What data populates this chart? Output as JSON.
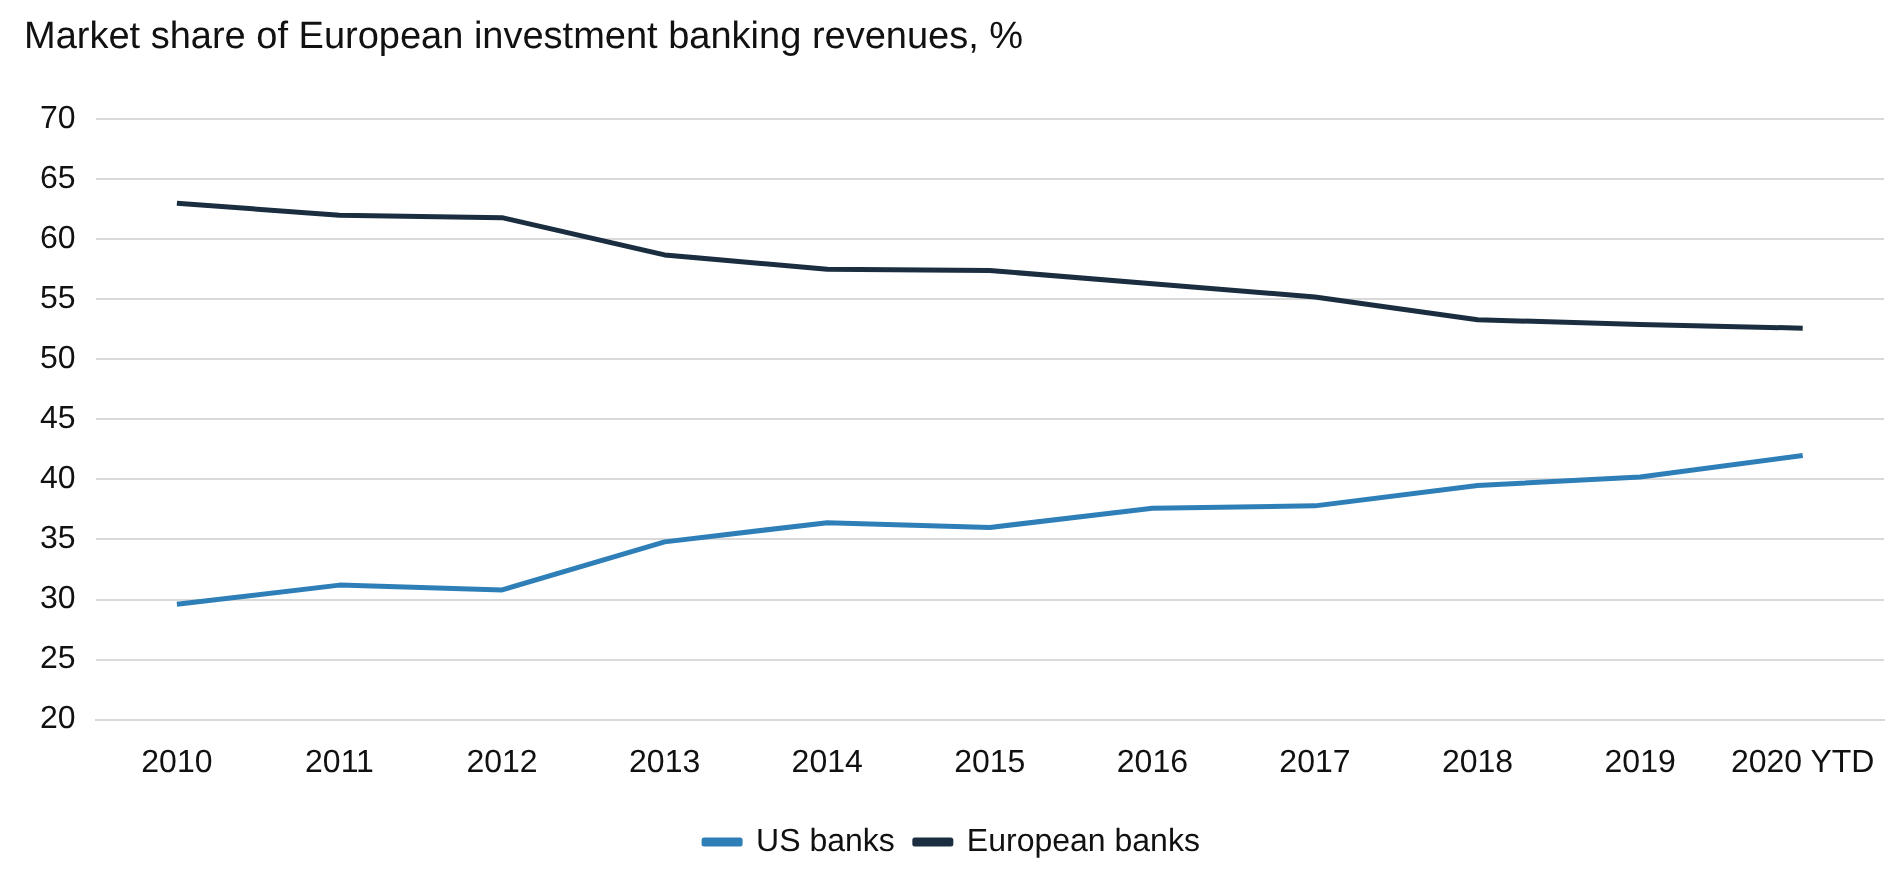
{
  "chart_data": {
    "type": "line",
    "subtitle": "Market share of European investment banking revenues, %",
    "categories": [
      "2010",
      "2011",
      "2012",
      "2013",
      "2014",
      "2015",
      "2016",
      "2017",
      "2018",
      "2019",
      "2020 YTD"
    ],
    "series": [
      {
        "name": "US banks",
        "color": "#2e7fb8",
        "values": [
          29.6,
          31.2,
          30.8,
          34.8,
          36.4,
          36.0,
          37.6,
          37.8,
          39.5,
          40.2,
          42.0
        ]
      },
      {
        "name": "European banks",
        "color": "#1a2e40",
        "values": [
          63.0,
          62.0,
          61.8,
          58.7,
          57.5,
          57.4,
          56.3,
          55.2,
          53.3,
          52.9,
          52.6
        ]
      }
    ],
    "ylim": [
      20,
      70
    ],
    "yticks": [
      20,
      25,
      30,
      35,
      40,
      45,
      50,
      55,
      60,
      65,
      70
    ],
    "grid": "y",
    "legend": "bottom",
    "marker": "none",
    "line_style": "solid"
  }
}
